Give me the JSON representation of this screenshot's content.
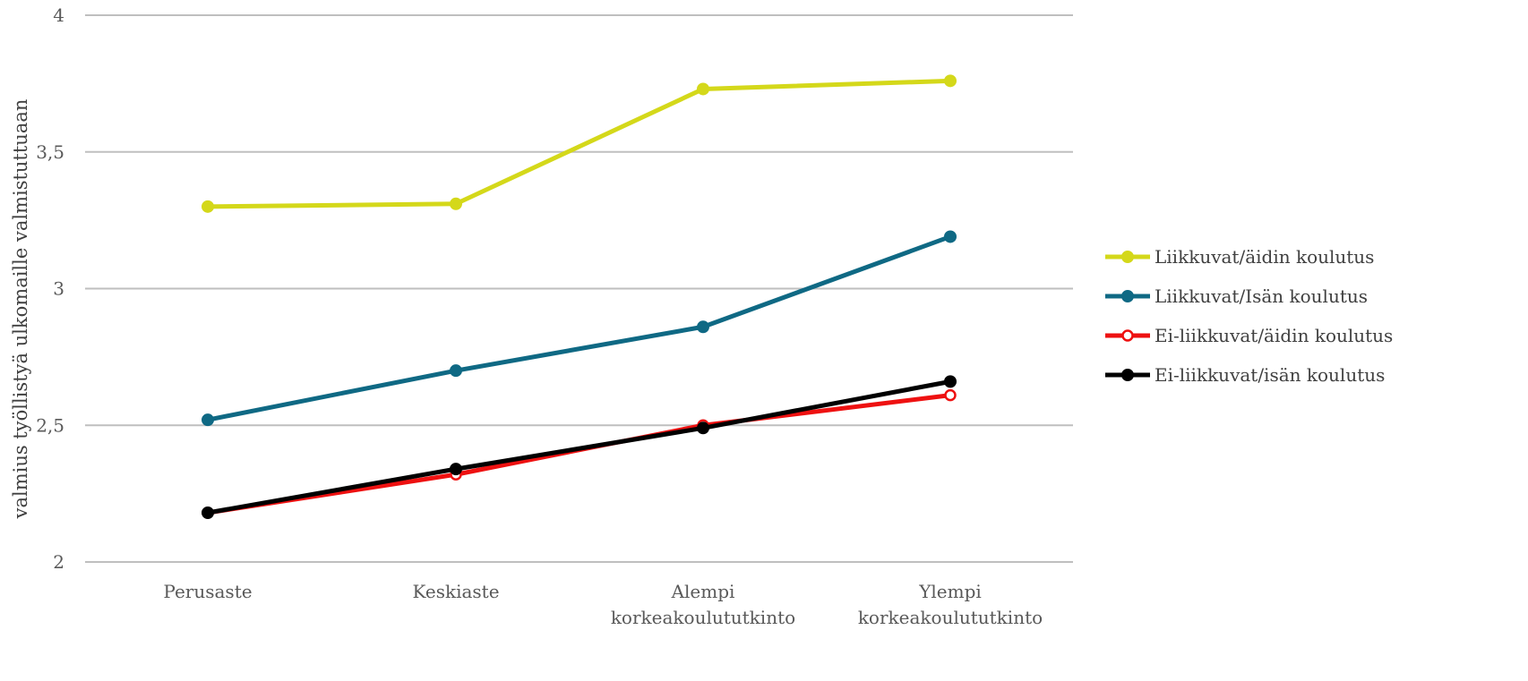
{
  "chart_data": {
    "type": "line",
    "title": "",
    "xlabel": "",
    "ylabel": "valmius työllistyä ulkomaille valmistuttuaan",
    "ylim": [
      2,
      4
    ],
    "yticks": [
      {
        "value": 2,
        "label": "2"
      },
      {
        "value": 2.5,
        "label": "2,5"
      },
      {
        "value": 3,
        "label": "3"
      },
      {
        "value": 3.5,
        "label": "3,5"
      },
      {
        "value": 4,
        "label": "4"
      }
    ],
    "categories": [
      [
        "Perusaste"
      ],
      [
        "Keskiaste"
      ],
      [
        "Alempi",
        "korkeakoulututkinto"
      ],
      [
        "Ylempi",
        "korkeakoulututkinto"
      ]
    ],
    "grid": true,
    "legend_position": "right",
    "series": [
      {
        "name": "Liikkuvat/äidin koulutus",
        "values": [
          3.3,
          3.31,
          3.73,
          3.76
        ],
        "color": "#d4d81a",
        "marker": "filled"
      },
      {
        "name": "Liikkuvat/Isän koulutus",
        "values": [
          2.52,
          2.7,
          2.86,
          3.19
        ],
        "color": "#0f6984",
        "marker": "filled"
      },
      {
        "name": "Ei-liikkuvat/äidin koulutus",
        "values": [
          2.18,
          2.32,
          2.5,
          2.61
        ],
        "color": "#ee1111",
        "marker": "hollow"
      },
      {
        "name": "Ei-liikkuvat/isän koulutus",
        "values": [
          2.18,
          2.34,
          2.49,
          2.66
        ],
        "color": "#000000",
        "marker": "filled"
      }
    ]
  }
}
